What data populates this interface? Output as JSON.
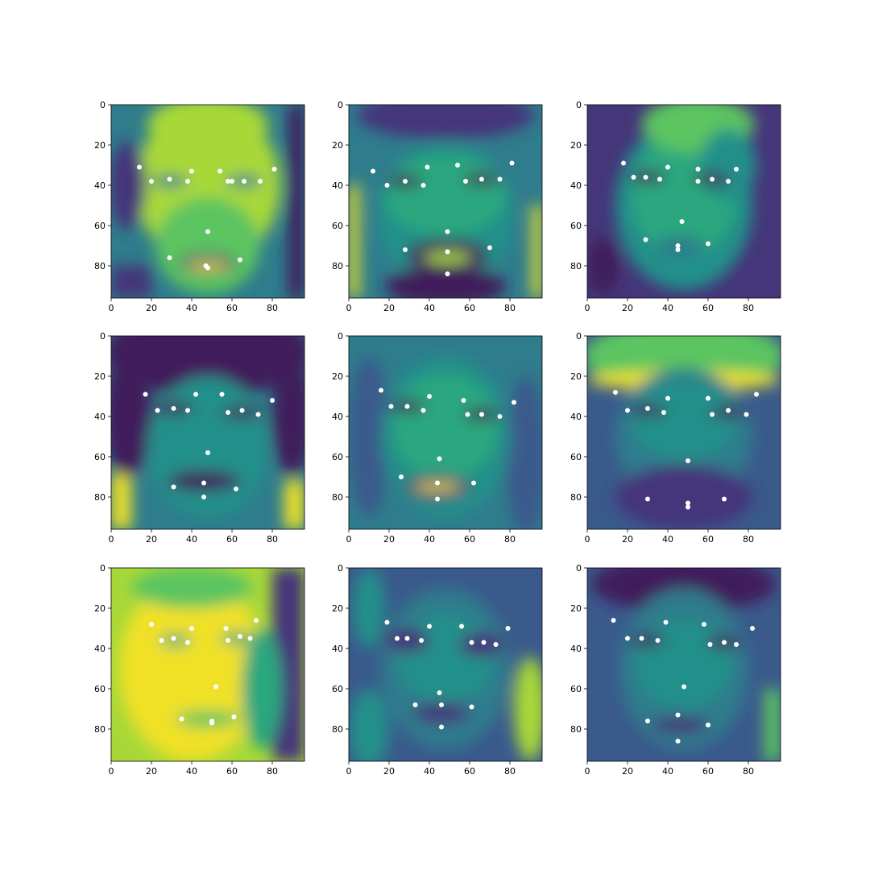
{
  "figure": {
    "rows": 3,
    "cols": 3,
    "image_size": 96,
    "colormap": "viridis",
    "keypoint_color": "#ffffff",
    "axes_color": "#000000",
    "background": "#ffffff"
  },
  "axes": {
    "x_ticks": [
      0,
      20,
      40,
      60,
      80
    ],
    "y_ticks": [
      0,
      20,
      40,
      60,
      80
    ],
    "x_tick_labels": [
      "0",
      "20",
      "40",
      "60",
      "80"
    ],
    "y_tick_labels": [
      "0",
      "20",
      "40",
      "60",
      "80"
    ]
  },
  "panels": [
    {
      "keypoints": [
        [
          14,
          31
        ],
        [
          20,
          38
        ],
        [
          29,
          37
        ],
        [
          38,
          38
        ],
        [
          40,
          33
        ],
        [
          54,
          33
        ],
        [
          58,
          38
        ],
        [
          66,
          38
        ],
        [
          74,
          38
        ],
        [
          81,
          32
        ],
        [
          48,
          63
        ],
        [
          29,
          76
        ],
        [
          48,
          81
        ],
        [
          64,
          77
        ],
        [
          47,
          80
        ],
        [
          60,
          38
        ]
      ]
    },
    {
      "keypoints": [
        [
          12,
          33
        ],
        [
          19,
          40
        ],
        [
          28,
          38
        ],
        [
          37,
          40
        ],
        [
          39,
          31
        ],
        [
          54,
          30
        ],
        [
          58,
          38
        ],
        [
          66,
          37
        ],
        [
          75,
          37
        ],
        [
          81,
          29
        ],
        [
          49,
          63
        ],
        [
          28,
          72
        ],
        [
          49,
          73
        ],
        [
          70,
          71
        ],
        [
          49,
          84
        ]
      ]
    },
    {
      "keypoints": [
        [
          18,
          29
        ],
        [
          23,
          36
        ],
        [
          29,
          36
        ],
        [
          36,
          37
        ],
        [
          40,
          31
        ],
        [
          55,
          32
        ],
        [
          55,
          38
        ],
        [
          62,
          37
        ],
        [
          70,
          38
        ],
        [
          74,
          32
        ],
        [
          47,
          58
        ],
        [
          29,
          67
        ],
        [
          45,
          70
        ],
        [
          60,
          69
        ],
        [
          45,
          72
        ]
      ]
    },
    {
      "keypoints": [
        [
          17,
          29
        ],
        [
          23,
          37
        ],
        [
          31,
          36
        ],
        [
          38,
          37
        ],
        [
          42,
          29
        ],
        [
          55,
          29
        ],
        [
          58,
          38
        ],
        [
          65,
          37
        ],
        [
          73,
          39
        ],
        [
          80,
          32
        ],
        [
          48,
          58
        ],
        [
          31,
          75
        ],
        [
          46,
          73
        ],
        [
          62,
          76
        ],
        [
          46,
          80
        ]
      ]
    },
    {
      "keypoints": [
        [
          16,
          27
        ],
        [
          21,
          35
        ],
        [
          29,
          35
        ],
        [
          37,
          37
        ],
        [
          40,
          30
        ],
        [
          57,
          32
        ],
        [
          59,
          39
        ],
        [
          66,
          39
        ],
        [
          75,
          40
        ],
        [
          82,
          33
        ],
        [
          45,
          61
        ],
        [
          26,
          70
        ],
        [
          44,
          73
        ],
        [
          62,
          73
        ],
        [
          44,
          81
        ]
      ]
    },
    {
      "keypoints": [
        [
          14,
          28
        ],
        [
          20,
          37
        ],
        [
          30,
          36
        ],
        [
          38,
          38
        ],
        [
          40,
          31
        ],
        [
          60,
          31
        ],
        [
          62,
          39
        ],
        [
          70,
          37
        ],
        [
          79,
          39
        ],
        [
          84,
          29
        ],
        [
          50,
          62
        ],
        [
          30,
          81
        ],
        [
          50,
          83
        ],
        [
          68,
          81
        ],
        [
          50,
          85
        ]
      ]
    },
    {
      "keypoints": [
        [
          20,
          28
        ],
        [
          25,
          36
        ],
        [
          31,
          35
        ],
        [
          38,
          37
        ],
        [
          40,
          30
        ],
        [
          57,
          30
        ],
        [
          58,
          36
        ],
        [
          64,
          34
        ],
        [
          69,
          35
        ],
        [
          72,
          26
        ],
        [
          52,
          59
        ],
        [
          35,
          75
        ],
        [
          50,
          76
        ],
        [
          61,
          74
        ],
        [
          50,
          77
        ]
      ]
    },
    {
      "keypoints": [
        [
          19,
          27
        ],
        [
          24,
          35
        ],
        [
          29,
          35
        ],
        [
          36,
          36
        ],
        [
          40,
          29
        ],
        [
          56,
          29
        ],
        [
          61,
          37
        ],
        [
          67,
          37
        ],
        [
          73,
          38
        ],
        [
          79,
          30
        ],
        [
          45,
          62
        ],
        [
          33,
          68
        ],
        [
          46,
          68
        ],
        [
          61,
          69
        ],
        [
          46,
          79
        ]
      ]
    },
    {
      "keypoints": [
        [
          13,
          26
        ],
        [
          20,
          35
        ],
        [
          27,
          35
        ],
        [
          35,
          36
        ],
        [
          39,
          27
        ],
        [
          58,
          28
        ],
        [
          61,
          38
        ],
        [
          68,
          37
        ],
        [
          74,
          38
        ],
        [
          82,
          30
        ],
        [
          48,
          59
        ],
        [
          30,
          76
        ],
        [
          45,
          73
        ],
        [
          60,
          78
        ],
        [
          45,
          86
        ]
      ]
    }
  ]
}
